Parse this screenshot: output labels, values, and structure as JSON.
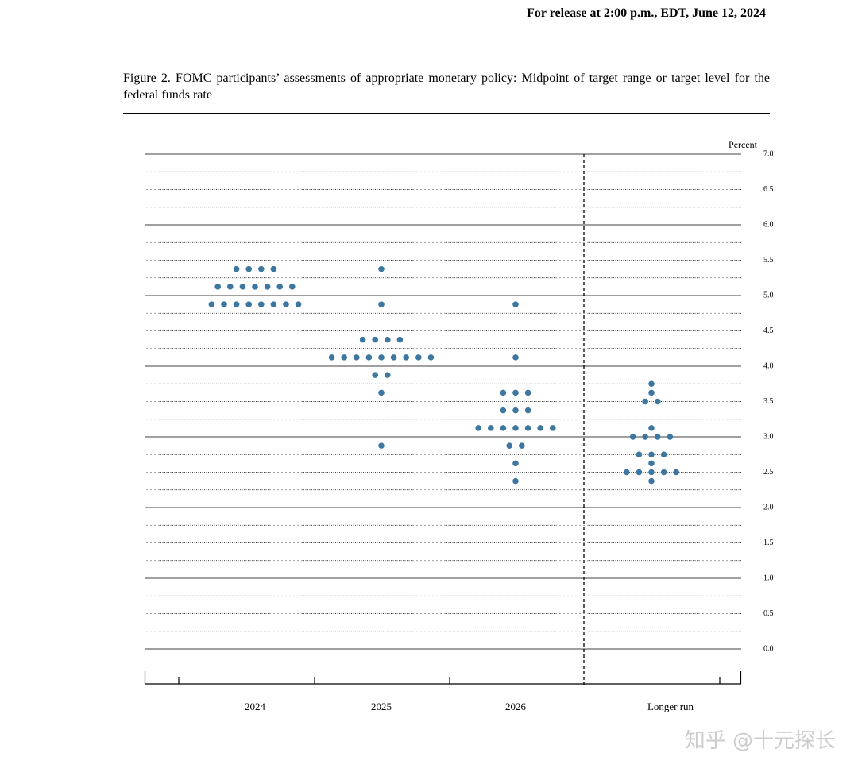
{
  "header": {
    "release": "For release at 2:00 p.m., EDT, June 12, 2024"
  },
  "watermark": "知乎 @十元探长",
  "chart_data": {
    "type": "dot",
    "title": "Figure 2.  FOMC participants’ assessments of appropriate monetary policy:  Midpoint of target range or target level for the federal funds rate",
    "y_label": "Percent",
    "categories": [
      "2024",
      "2025",
      "2026",
      "Longer run"
    ],
    "values": [
      [
        5.375,
        5.375,
        5.375,
        5.375,
        5.125,
        5.125,
        5.125,
        5.125,
        5.125,
        5.125,
        5.125,
        4.875,
        4.875,
        4.875,
        4.875,
        4.875,
        4.875,
        4.875,
        4.875
      ],
      [
        5.375,
        4.875,
        4.375,
        4.375,
        4.375,
        4.375,
        4.125,
        4.125,
        4.125,
        4.125,
        4.125,
        4.125,
        4.125,
        4.125,
        4.125,
        3.875,
        3.875,
        3.625,
        2.875
      ],
      [
        4.875,
        4.125,
        3.625,
        3.625,
        3.625,
        3.375,
        3.375,
        3.375,
        3.125,
        3.125,
        3.125,
        3.125,
        3.125,
        3.125,
        3.125,
        2.875,
        2.875,
        2.625,
        2.375
      ],
      [
        3.75,
        3.625,
        3.5,
        3.5,
        3.125,
        3.0,
        3.0,
        3.0,
        3.0,
        2.75,
        2.75,
        2.75,
        2.625,
        2.5,
        2.5,
        2.5,
        2.5,
        2.5,
        2.375
      ]
    ],
    "color": "#3d77a0",
    "ylim": [
      0,
      7
    ],
    "yticks": [
      {
        "value": 0,
        "label": "0.0"
      },
      {
        "value": 0.5,
        "label": "0.5"
      },
      {
        "value": 1,
        "label": "1.0"
      },
      {
        "value": 1.5,
        "label": "1.5"
      },
      {
        "value": 2,
        "label": "2.0"
      },
      {
        "value": 2.5,
        "label": "2.5"
      },
      {
        "value": 3,
        "label": "3.0"
      },
      {
        "value": 3.5,
        "label": "3.5"
      },
      {
        "value": 4,
        "label": "4.0"
      },
      {
        "value": 4.5,
        "label": "4.5"
      },
      {
        "value": 5,
        "label": "5.0"
      },
      {
        "value": 5.5,
        "label": "5.5"
      },
      {
        "value": 6,
        "label": "6.0"
      },
      {
        "value": 6.5,
        "label": "6.5"
      },
      {
        "value": 7,
        "label": "7.0"
      }
    ],
    "grid": true
  }
}
